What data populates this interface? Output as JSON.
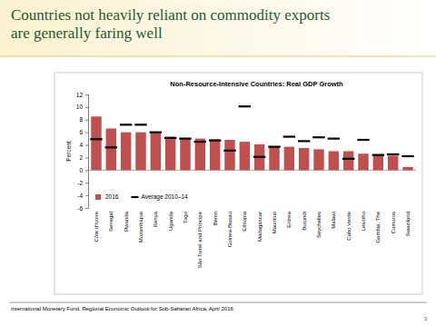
{
  "header": {
    "title": [
      "Countries not heavily reliant on commodity exports",
      "are generally faring well"
    ]
  },
  "chart_data": {
    "type": "bar",
    "title": "Non-Resource-Intensive Countries: Real GDP Growth",
    "ylabel": "Percent",
    "categories": [
      "Côte d'Ivoire",
      "Senegal",
      "Rwanda",
      "Mozambique",
      "Kenya",
      "Uganda",
      "Togo",
      "São Tomé and Príncipe",
      "Benin",
      "Guinea-Bissau",
      "Ethiopia",
      "Madagascar",
      "Mauritius",
      "Eritrea",
      "Burundi",
      "Seychelles",
      "Malawi",
      "Cabo Verde",
      "Lesotho",
      "Gambia, The",
      "Comoros",
      "Swaziland"
    ],
    "series": [
      {
        "name": "2016",
        "type": "bar",
        "color": "#c0504d",
        "values": [
          8.5,
          6.6,
          6.0,
          6.0,
          6.0,
          5.3,
          5.1,
          5.0,
          4.9,
          4.8,
          4.5,
          4.1,
          3.8,
          3.7,
          3.5,
          3.3,
          3.0,
          3.0,
          2.6,
          2.5,
          2.3,
          0.5
        ]
      },
      {
        "name": "Average 2010–14",
        "type": "scatter",
        "marker": "dash",
        "color": "#000000",
        "values": [
          4.9,
          3.6,
          7.2,
          7.2,
          6.0,
          5.1,
          5.0,
          4.5,
          4.7,
          3.1,
          10.1,
          2.1,
          3.7,
          5.3,
          4.6,
          5.2,
          5.0,
          1.8,
          4.8,
          2.4,
          2.5,
          2.2
        ]
      }
    ],
    "ylim": [
      -6,
      12
    ],
    "yticks": [
      -6,
      -4,
      -2,
      0,
      2,
      4,
      6,
      8,
      10,
      12
    ],
    "grid": false,
    "legend": "lower left"
  },
  "footer": {
    "source": "International Monetary Fund, Regional Economic Outlook for Sub-Saharan Africa, April 2016",
    "page": 3
  }
}
